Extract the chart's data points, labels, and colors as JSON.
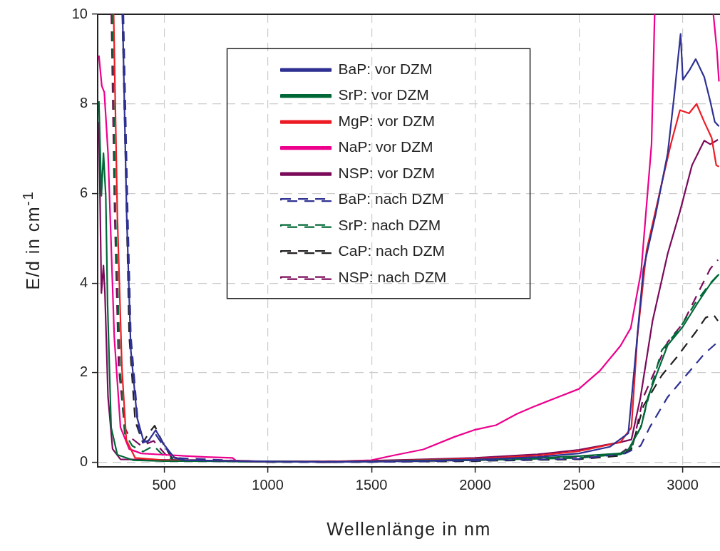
{
  "chart_data": {
    "type": "line",
    "xlabel": "Wellenlänge in nm",
    "ylabel": "E/d in cm$^{-1}$",
    "xlim": [
      180,
      3180
    ],
    "ylim": [
      -0.1,
      10
    ],
    "xticks": [
      500,
      1000,
      1500,
      2000,
      2500,
      3000
    ],
    "yticks": [
      0,
      2,
      4,
      6,
      8,
      10
    ],
    "grid": true,
    "legend": "top",
    "marker": "none",
    "series": [
      {
        "name": "BaP: vor DZM",
        "color": "#2e3192",
        "line_style": "solid",
        "x": [
          300,
          320,
          340,
          370,
          400,
          420,
          460,
          500,
          550,
          600,
          1000,
          1300,
          1700,
          2000,
          2300,
          2500,
          2650,
          2738,
          2768,
          2811,
          2870,
          2928,
          2958,
          2990,
          3001,
          3031,
          3063,
          3104,
          3133,
          3155,
          3175
        ],
        "values": [
          10,
          5.5,
          2.5,
          1.0,
          0.5,
          0.45,
          0.72,
          0.4,
          0.1,
          0.05,
          0.02,
          0.01,
          0.03,
          0.06,
          0.12,
          0.2,
          0.35,
          0.65,
          2.14,
          4.32,
          5.54,
          6.9,
          8.13,
          9.56,
          8.54,
          8.74,
          9.0,
          8.6,
          8.06,
          7.6,
          7.5
        ]
      },
      {
        "name": "SrP: vor DZM",
        "color": "#006837",
        "line_style": "solid",
        "x": [
          186,
          198,
          208,
          219,
          228,
          245,
          275,
          350,
          500,
          1000,
          1300,
          1700,
          2000,
          2300,
          2500,
          2700,
          2740,
          2800,
          2833,
          2928,
          3001,
          3074,
          3133,
          3175
        ],
        "values": [
          8.06,
          5.95,
          6.9,
          5.95,
          3.5,
          0.78,
          0.17,
          0.05,
          0.03,
          0.02,
          0.01,
          0.04,
          0.06,
          0.1,
          0.14,
          0.2,
          0.3,
          0.8,
          1.46,
          2.62,
          3.03,
          3.57,
          3.98,
          4.2
        ]
      },
      {
        "name": "MgP: vor DZM",
        "color": "#ed1c24",
        "line_style": "solid",
        "x": [
          257,
          275,
          297,
          318,
          361,
          500,
          1300,
          1700,
          2000,
          2300,
          2500,
          2700,
          2753,
          2782,
          2826,
          2899,
          2943,
          2987,
          3031,
          3067,
          3104,
          3140,
          3162,
          3175
        ],
        "values": [
          10,
          5.5,
          2.1,
          0.5,
          0.1,
          0.05,
          0.01,
          0.05,
          0.08,
          0.15,
          0.25,
          0.45,
          0.78,
          2.82,
          4.73,
          6.22,
          7.1,
          7.86,
          7.79,
          8.0,
          7.6,
          7.24,
          6.63,
          6.6
        ]
      },
      {
        "name": "NaP: vor DZM",
        "color": "#ec008c",
        "line_style": "solid",
        "x": [
          186,
          200,
          212,
          230,
          245,
          260,
          290,
          332,
          390,
          500,
          700,
          830,
          850,
          1300,
          1500,
          1600,
          1750,
          1900,
          2000,
          2100,
          2200,
          2280,
          2400,
          2500,
          2600,
          2700,
          2750,
          2800,
          2850,
          2865,
          3000,
          3148,
          3165,
          3175
        ],
        "values": [
          9.08,
          8.4,
          8.26,
          6.9,
          4.86,
          2.8,
          0.78,
          0.3,
          0.2,
          0.17,
          0.12,
          0.1,
          0.03,
          0.01,
          0.05,
          0.15,
          0.29,
          0.57,
          0.73,
          0.83,
          1.08,
          1.24,
          1.46,
          1.64,
          2.04,
          2.6,
          3.0,
          4.27,
          7.1,
          10,
          null,
          10,
          9.2,
          8.5
        ]
      },
      {
        "name": "NSP: vor DZM",
        "color": "#7b0a5a",
        "line_style": "solid",
        "x": [
          186,
          198,
          208,
          215,
          230,
          252,
          290,
          600,
          1000,
          1300,
          1700,
          2000,
          2300,
          2500,
          2700,
          2753,
          2797,
          2855,
          2928,
          2987,
          3045,
          3104,
          3133,
          3170
        ],
        "values": [
          7.6,
          3.78,
          4.39,
          3.78,
          1.46,
          0.3,
          0.07,
          0.05,
          0.02,
          0.02,
          0.06,
          0.1,
          0.18,
          0.28,
          0.45,
          0.51,
          1.46,
          3.16,
          4.66,
          5.6,
          6.63,
          7.18,
          7.1,
          7.2
        ]
      },
      {
        "name": "BaP: nach DZM",
        "color": "#2e3192",
        "line_style": "dashed",
        "x": [
          304,
          325,
          340,
          376,
          398,
          430,
          460,
          500,
          550,
          1000,
          1500,
          2000,
          2500,
          2724,
          2797,
          2841,
          2928,
          3016,
          3104,
          3170
        ],
        "values": [
          10,
          5.54,
          2.82,
          0.78,
          0.44,
          0.5,
          0.62,
          0.35,
          0.1,
          0.01,
          0.01,
          0.04,
          0.08,
          0.2,
          0.37,
          0.78,
          1.46,
          1.94,
          2.42,
          2.69
        ]
      },
      {
        "name": "SrP: nach DZM",
        "color": "#006837",
        "line_style": "dashed",
        "x": [
          251,
          266,
          288,
          310,
          347,
          398,
          450,
          493,
          550,
          1000,
          1500,
          2000,
          2500,
          2700,
          2740,
          2797,
          2841,
          2899,
          2987,
          3060,
          3133,
          3175
        ],
        "values": [
          10,
          5.54,
          2.14,
          0.65,
          0.37,
          0.24,
          0.37,
          0.17,
          0.05,
          0.01,
          0.02,
          0.05,
          0.1,
          0.18,
          0.25,
          0.78,
          1.55,
          2.5,
          3.0,
          3.55,
          4.0,
          4.2
        ]
      },
      {
        "name": "CaP: nach DZM",
        "color": "#231f20",
        "line_style": "dashed",
        "x": [
          299,
          320,
          332,
          361,
          398,
          426,
          455,
          493,
          537,
          600,
          1000,
          1500,
          2000,
          2500,
          2700,
          2753,
          2811,
          2899,
          2972,
          3060,
          3111,
          3148,
          3170
        ],
        "values": [
          10,
          5.54,
          2.82,
          0.92,
          0.44,
          0.65,
          0.82,
          0.44,
          0.1,
          0.04,
          0.01,
          0.01,
          0.03,
          0.07,
          0.15,
          0.3,
          1.26,
          1.94,
          2.35,
          2.89,
          3.23,
          3.3,
          3.16
        ]
      },
      {
        "name": "NSP: nach DZM",
        "color": "#7b0a5a",
        "line_style": "dashed",
        "x": [
          246,
          262,
          281,
          310,
          332,
          390,
          450,
          508,
          600,
          1000,
          1500,
          2000,
          2500,
          2700,
          2760,
          2811,
          2928,
          3001,
          3074,
          3133,
          3170
        ],
        "values": [
          10,
          5.54,
          2.14,
          0.78,
          0.58,
          0.37,
          0.48,
          0.17,
          0.05,
          0.02,
          0.02,
          0.05,
          0.12,
          0.2,
          0.4,
          1.46,
          2.69,
          3.1,
          3.78,
          4.32,
          4.52
        ]
      }
    ]
  }
}
